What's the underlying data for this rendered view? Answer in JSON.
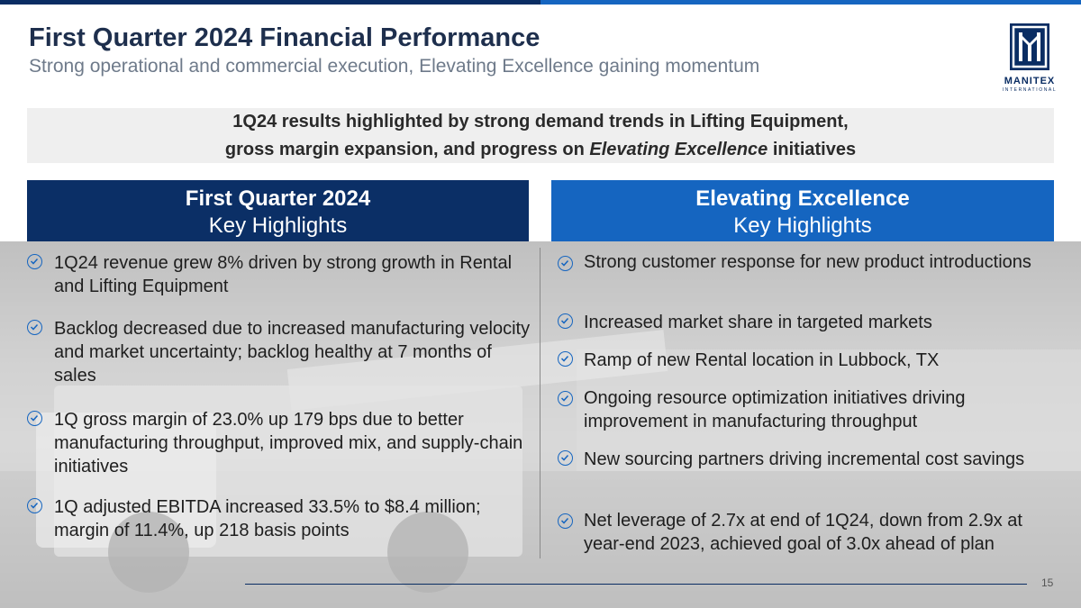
{
  "slide": {
    "title": "First Quarter 2024 Financial Performance",
    "subtitle": "Strong operational and commercial execution, Elevating Excellence gaining momentum",
    "page_number": "15"
  },
  "logo": {
    "wordmark": "MANITEX",
    "subtext": "INTERNATIONAL"
  },
  "banner": {
    "line1": "1Q24 results highlighted by strong demand trends in Lifting Equipment,",
    "line2_prefix": "gross margin expansion, and progress on ",
    "line2_emphasis": "Elevating Excellence",
    "line2_suffix": " initiatives"
  },
  "left_column": {
    "heading": "First Quarter 2024",
    "subheading": "Key Highlights",
    "bullets": [
      "1Q24 revenue grew 8% driven by strong growth in Rental and Lifting Equipment",
      "Backlog decreased due to increased manufacturing velocity and market uncertainty; backlog healthy at 7 months of sales",
      "1Q gross margin of 23.0% up 179 bps due to better manufacturing throughput, improved mix, and supply-chain initiatives",
      "1Q adjusted EBITDA increased 33.5% to $8.4 million; margin of 11.4%, up 218 basis points"
    ]
  },
  "right_column": {
    "heading": "Elevating Excellence",
    "subheading": "Key Highlights",
    "bullets": [
      "Strong customer response for new product introductions",
      "Increased market share in targeted markets",
      "Ramp of new Rental location in Lubbock, TX",
      "Ongoing resource optimization initiatives driving improvement in manufacturing throughput",
      "New sourcing partners driving incremental cost savings",
      "Net leverage of 2.7x at end of 1Q24, down from 2.9x at year-end 2023, achieved goal of 3.0x ahead of plan"
    ]
  },
  "colors": {
    "navy": "#0b2f66",
    "blue": "#1565c0",
    "title": "#1e2f4d",
    "subtitle": "#6e7a8a",
    "banner_bg": "#efefef"
  },
  "icons": {
    "bullet": "check-circle-icon"
  }
}
